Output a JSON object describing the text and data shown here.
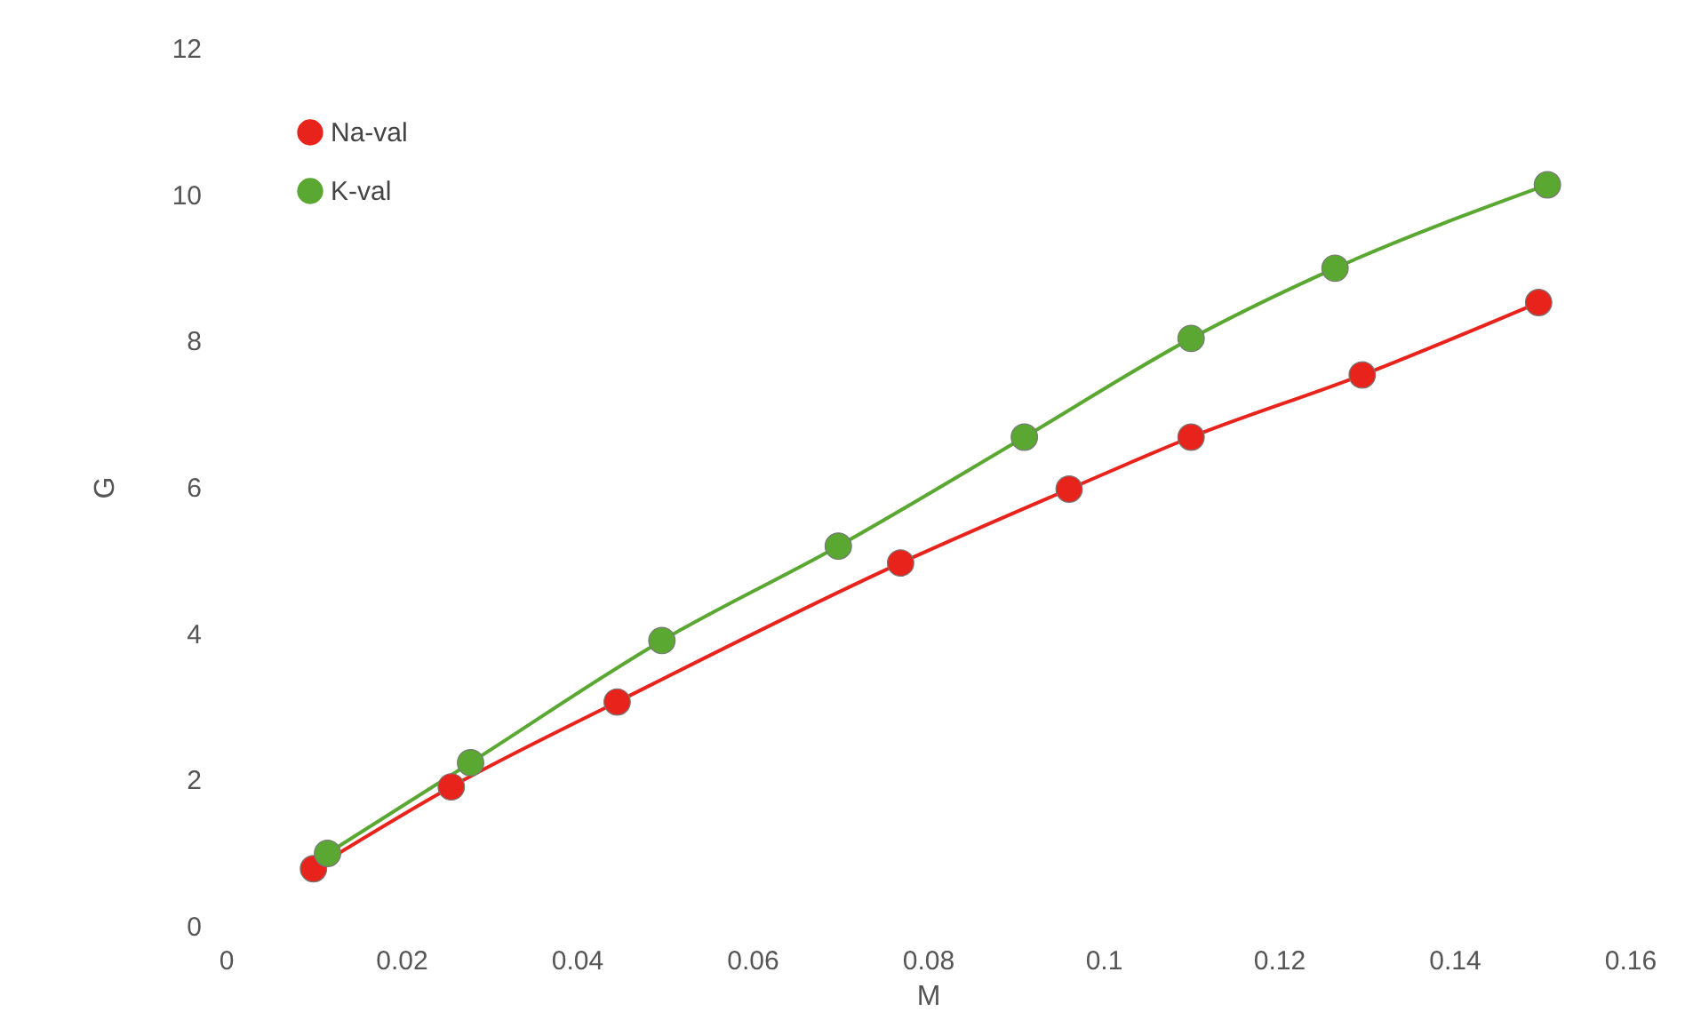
{
  "chart_data": {
    "type": "line",
    "xlabel": "M",
    "ylabel": "G",
    "xlim": [
      0,
      0.16
    ],
    "xticks": [
      0,
      0.02,
      0.04,
      0.06,
      0.08,
      0.1,
      0.12,
      0.14,
      0.16
    ],
    "ylim": [
      0,
      12
    ],
    "yticks": [
      0,
      2,
      4,
      6,
      8,
      10,
      12
    ],
    "grid": false,
    "legend": "top left",
    "marker": "circle",
    "line_style": "solid",
    "series": [
      {
        "name": "Na-val",
        "color": "#e8231b",
        "x": [
          0.01,
          0.0257,
          0.0446,
          0.0769,
          0.0961,
          0.11,
          0.1295,
          0.1496
        ],
        "values": [
          0.78,
          1.9,
          3.06,
          4.96,
          5.97,
          6.68,
          7.53,
          8.52
        ]
      },
      {
        "name": "K-val",
        "color": "#5aa832",
        "x": [
          0.0116,
          0.0279,
          0.0497,
          0.0698,
          0.091,
          0.11,
          0.1264,
          0.1506
        ],
        "values": [
          0.99,
          2.23,
          3.9,
          5.19,
          6.68,
          8.03,
          8.99,
          10.13
        ]
      }
    ]
  }
}
